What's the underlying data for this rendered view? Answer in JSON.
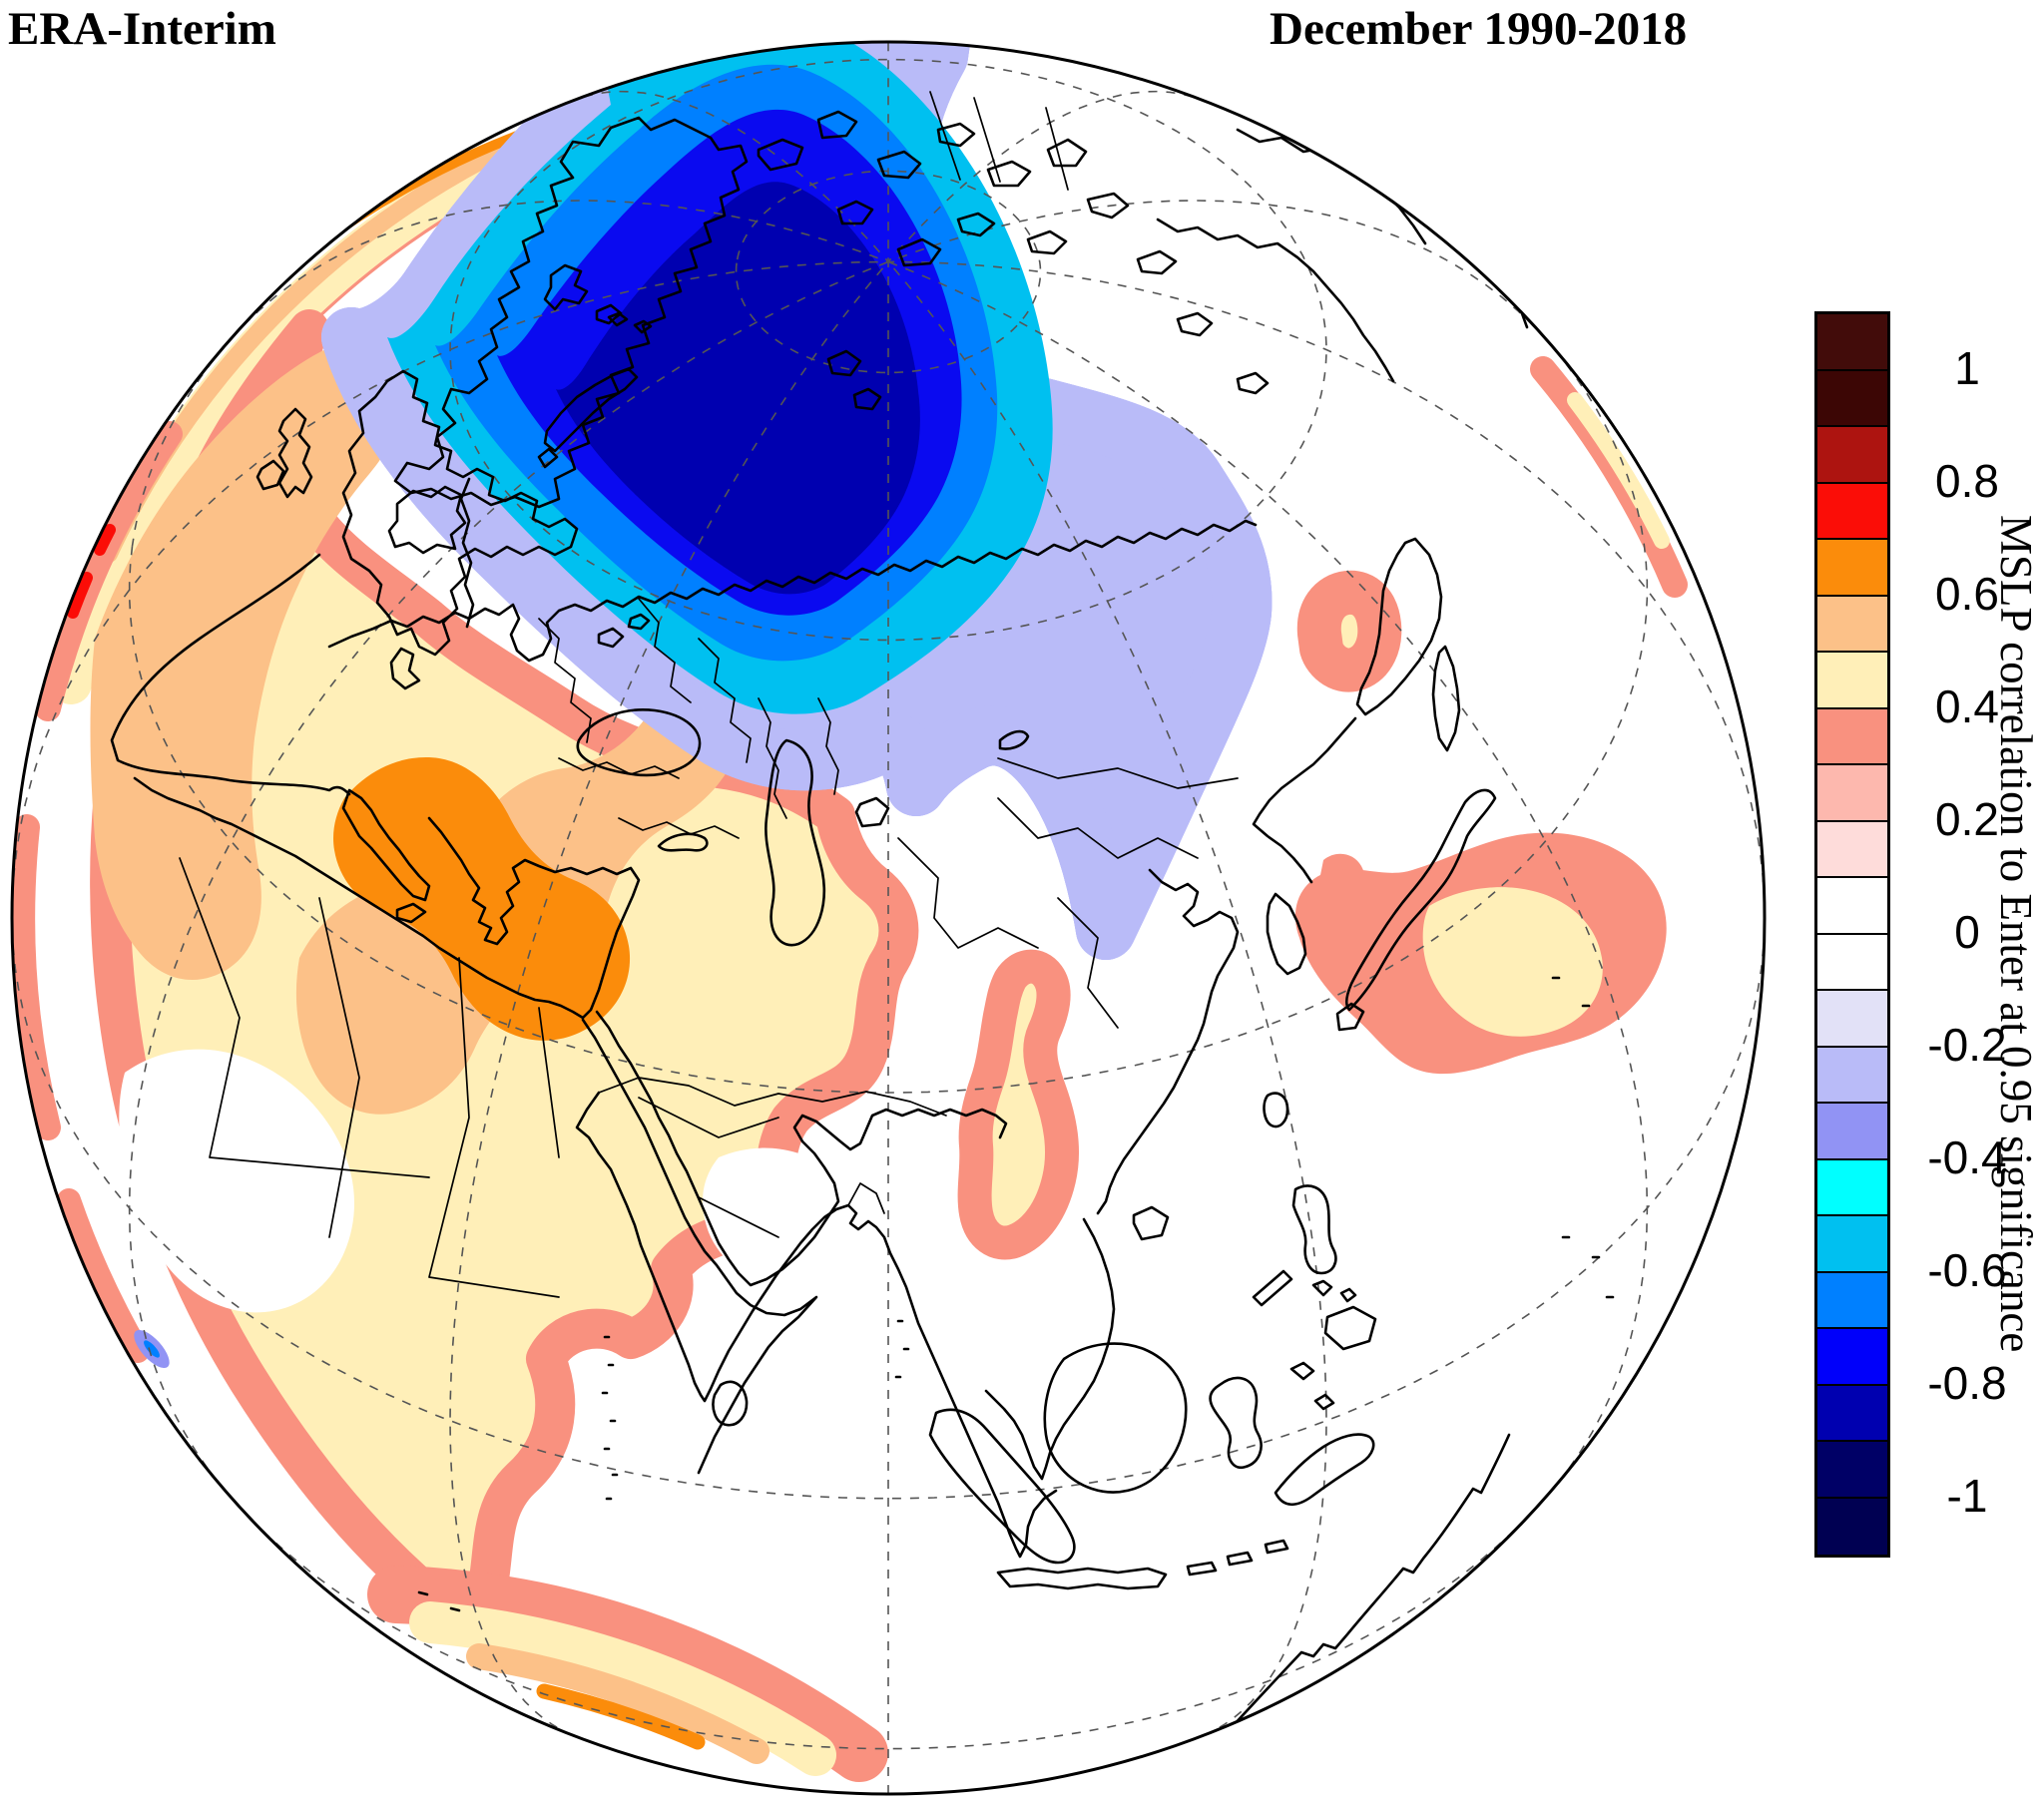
{
  "titles": {
    "left": "ERA-Interim",
    "right": "December 1990-2018"
  },
  "colorbar": {
    "label": "MSLP correlation to Enter at 0.95 significance",
    "tick_labels": [
      "1",
      "0.8",
      "0.6",
      "0.4",
      "0.2",
      "0",
      "-0.2",
      "-0.4",
      "-0.6",
      "-0.8",
      "-1"
    ],
    "segment_colors_top_to_bottom": [
      "#420c0a",
      "#3c0605",
      "#ad1410",
      "#fb0d07",
      "#fb8c0b",
      "#fcc188",
      "#ffefb8",
      "#f9917f",
      "#fdb8ae",
      "#fedcda",
      "#ffffff",
      "#ffffff",
      "#e2e1f7",
      "#b9bbf8",
      "#9193f4",
      "#00ffff",
      "#00c0f0",
      "#0080ff",
      "#0000fa",
      "#0000b0",
      "#000066",
      "#000052"
    ],
    "value_min": -1,
    "value_max": 1,
    "tick_step": 0.2
  },
  "palette": {
    "dark_red": "#ad1410",
    "red": "#fb0d07",
    "orange": "#fb8c0b",
    "light_orange": "#fcc188",
    "cream": "#ffefb8",
    "salmon": "#f9917f",
    "pale_lavender": "#e2e1f7",
    "light_periwinkle": "#b9bbf8",
    "periwinkle": "#9193f4",
    "cyan": "#00ffff",
    "sky": "#00c0f0",
    "azure": "#0080ff",
    "blue": "#0a0af0",
    "navy": "#0000b0",
    "coast": "#000000",
    "graticule": "#555555"
  },
  "chart_data": {
    "type": "filled_contour_map",
    "title_left": "ERA-Interim",
    "title_right": "December 1990-2018",
    "variable": "MSLP correlation to Enter",
    "significance_mask": "values shown only where significant at 0.95",
    "colorbar_label": "MSLP correlation to Enter at 0.95 significance",
    "value_range": [
      -1,
      1
    ],
    "contour_interval": 0.1,
    "levels": [
      -1,
      -0.9,
      -0.8,
      -0.7,
      -0.6,
      -0.5,
      -0.4,
      -0.3,
      -0.2,
      -0.1,
      0,
      0.1,
      0.2,
      0.3,
      0.4,
      0.5,
      0.6,
      0.7,
      0.8,
      0.9,
      1
    ],
    "projection": {
      "type": "orthographic",
      "center_lat_deg": 41.5,
      "center_lon_deg": 95
    },
    "graticule": {
      "style": "dashed",
      "lat_step_deg": 30,
      "lon_step_deg": 30,
      "extra_parallel_deg": 80
    },
    "regions": [
      {
        "name": "Arctic / Barents–Kara negative center",
        "sign": "negative",
        "peak_value": -0.9,
        "outer_level": -0.3,
        "location": "Arctic Ocean, Greenland–Svalbard–Novaya Zemlya sector, extending to Siberian coast"
      },
      {
        "name": "Europe / Mediterranean / Middle East positive center",
        "sign": "positive",
        "peak_value": 0.7,
        "outer_level": 0.3,
        "location": "core over central–eastern Mediterranean, Libya–Egypt–Levant; band from Iberia and NW Africa to Arabia"
      },
      {
        "name": "North Pacific positive patch",
        "sign": "positive",
        "peak_value": 0.5,
        "location": "Pacific east of Japan"
      },
      {
        "name": "Kamchatka / Okhotsk positive patch",
        "sign": "positive",
        "peak_value": 0.5,
        "location": "near Kamchatka"
      },
      {
        "name": "Sea of Japan positive spot",
        "sign": "positive",
        "peak_value": 0.4,
        "location": "Sea of Japan"
      },
      {
        "name": "Indochina positive tongue",
        "sign": "positive",
        "peak_value": 0.5,
        "location": "Myanmar–Yunnan–Laos, elongated north–south"
      },
      {
        "name": "Southern-limb positive crescent",
        "sign": "positive",
        "peak_value": 0.7,
        "location": "along lower-left limb of globe (southern Indian Ocean)"
      },
      {
        "name": "Left-limb positive band with small 0.7–0.8 spots",
        "sign": "positive",
        "peak_value": 0.8,
        "location": "along western limb (Atlantic / Africa edge)"
      },
      {
        "name": "Small negative speck",
        "sign": "negative",
        "peak_value": -0.4,
        "location": "near lower-left limb"
      }
    ]
  }
}
